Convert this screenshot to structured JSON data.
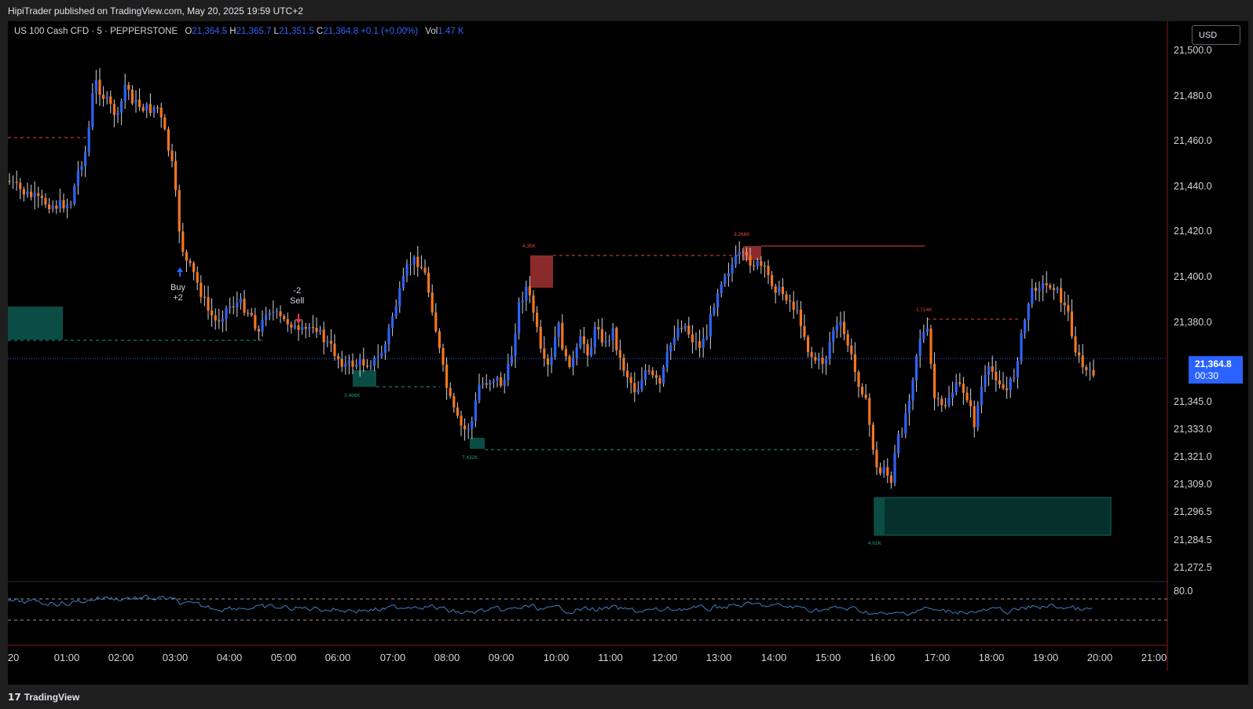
{
  "header": {
    "publisher_text": "HipiTrader published on TradingView.com, May 20, 2025 19:59 UTC+2"
  },
  "legend": {
    "symbol": "US 100 Cash CFD · 5 · PEPPERSTONE",
    "open_label": "O",
    "open": "21,364.5",
    "high_label": "H",
    "high": "21,365.7",
    "low_label": "L",
    "low": "21,351.5",
    "close_label": "C",
    "close": "21,364.8",
    "change": "+0.1 (+0.00%)",
    "vol_label": "Vol",
    "vol": "1.47 K"
  },
  "currency_button": "USD",
  "current_price": {
    "price": "21,364.8",
    "countdown": "00:30"
  },
  "price_axis": [
    "21,500.0",
    "21,480.0",
    "21,460.0",
    "21,440.0",
    "21,420.0",
    "21,400.0",
    "21,380.0",
    "21,345.0",
    "21,333.0",
    "21,321.0",
    "21,309.0",
    "21,296.5",
    "21,284.5",
    "21,272.5"
  ],
  "oscillator_axis": "80.0",
  "time_axis": [
    "20",
    "01:00",
    "02:00",
    "03:00",
    "04:00",
    "05:00",
    "06:00",
    "07:00",
    "08:00",
    "09:00",
    "10:00",
    "11:00",
    "12:00",
    "13:00",
    "14:00",
    "15:00",
    "16:00",
    "17:00",
    "18:00",
    "19:00",
    "20:00",
    "21:00"
  ],
  "signals": {
    "buy": {
      "label": "Buy",
      "qty": "+2"
    },
    "sell": {
      "label": "Sell",
      "qty": "-2"
    }
  },
  "zone_labels": [
    "4.35K",
    "3.266K",
    "1.714K",
    "3.466K",
    "7.432K",
    "4.61K"
  ],
  "colors": {
    "bull": "#2f62f6",
    "bear": "#f4761d",
    "supply": "#8b2a2a",
    "demand": "#0b4d45",
    "accent": "#2962ff"
  },
  "footer": {
    "brand": "TradingView",
    "logo_icon": "tradingview-logo-icon"
  }
}
